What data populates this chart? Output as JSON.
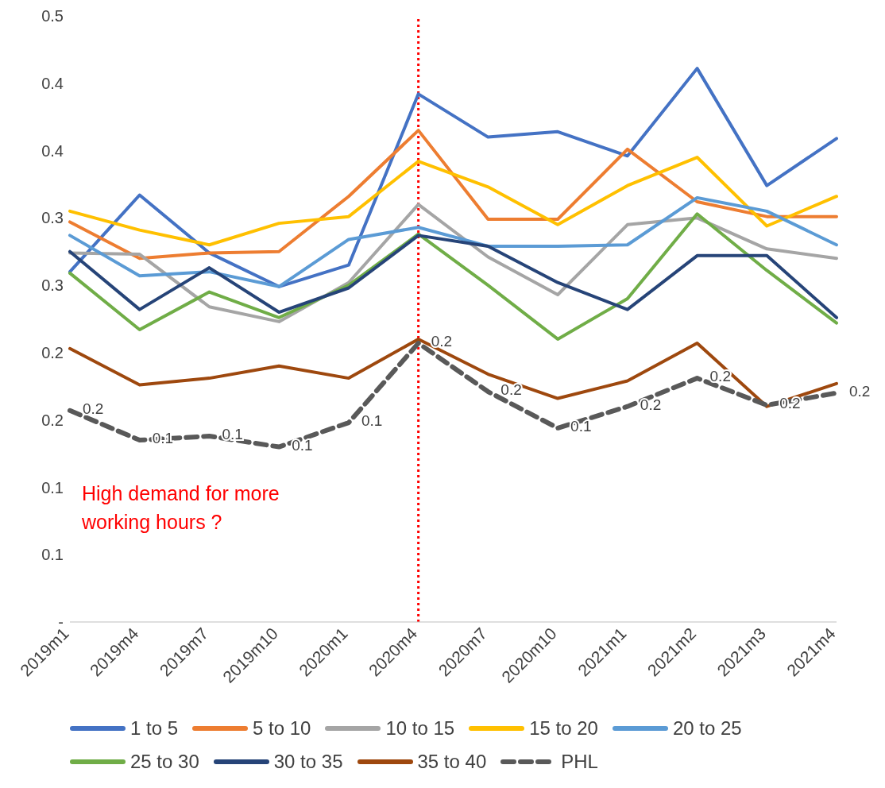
{
  "chart_data": {
    "type": "line",
    "categories": [
      "2019m1",
      "2019m4",
      "2019m7",
      "2019m10",
      "2020m1",
      "2020m4",
      "2020m7",
      "2020m10",
      "2021m1",
      "2021m2",
      "2021m3",
      "2021m4"
    ],
    "ylim": [
      0,
      0.45
    ],
    "yticks": [
      {
        "value": 0,
        "label": "-"
      },
      {
        "value": 0.05,
        "label": "0.1"
      },
      {
        "value": 0.1,
        "label": "0.1"
      },
      {
        "value": 0.15,
        "label": "0.2"
      },
      {
        "value": 0.2,
        "label": "0.2"
      },
      {
        "value": 0.25,
        "label": "0.3"
      },
      {
        "value": 0.3,
        "label": "0.3"
      },
      {
        "value": 0.35,
        "label": "0.4"
      },
      {
        "value": 0.4,
        "label": "0.4"
      },
      {
        "value": 0.45,
        "label": "0.5"
      }
    ],
    "grid": false,
    "legend": "bottom",
    "marker": "none",
    "series": [
      {
        "name": "1 to 5",
        "color": "#4472c4",
        "values": [
          0.26,
          0.317,
          0.274,
          0.249,
          0.265,
          0.392,
          0.36,
          0.364,
          0.346,
          0.411,
          0.324,
          0.359
        ]
      },
      {
        "name": "5 to 10",
        "color": "#ed7d31",
        "values": [
          0.297,
          0.27,
          0.274,
          0.275,
          0.316,
          0.365,
          0.299,
          0.299,
          0.351,
          0.312,
          0.301,
          0.301
        ]
      },
      {
        "name": "10 to 15",
        "color": "#a5a5a5",
        "values": [
          0.274,
          0.273,
          0.234,
          0.223,
          0.252,
          0.31,
          0.271,
          0.243,
          0.295,
          0.3,
          0.277,
          0.27
        ]
      },
      {
        "name": "15 to 20",
        "color": "#ffc000",
        "values": [
          0.305,
          0.291,
          0.28,
          0.296,
          0.301,
          0.342,
          0.323,
          0.295,
          0.324,
          0.345,
          0.294,
          0.316
        ]
      },
      {
        "name": "20 to 25",
        "color": "#5b9bd5",
        "values": [
          0.287,
          0.257,
          0.26,
          0.249,
          0.284,
          0.293,
          0.279,
          0.279,
          0.28,
          0.315,
          0.305,
          0.28
        ]
      },
      {
        "name": "25 to 30",
        "color": "#70ad47",
        "values": [
          0.259,
          0.217,
          0.245,
          0.226,
          0.25,
          0.288,
          0.25,
          0.21,
          0.24,
          0.303,
          0.261,
          0.222
        ]
      },
      {
        "name": "30 to 35",
        "color": "#264478",
        "values": [
          0.275,
          0.232,
          0.263,
          0.23,
          0.248,
          0.287,
          0.279,
          0.252,
          0.232,
          0.272,
          0.272,
          0.226
        ]
      },
      {
        "name": "35 to 40",
        "color": "#9e480e",
        "values": [
          0.203,
          0.176,
          0.181,
          0.19,
          0.181,
          0.21,
          0.184,
          0.166,
          0.179,
          0.207,
          0.16,
          0.177
        ]
      },
      {
        "name": "PHL",
        "color": "#595959",
        "line_style": "dashed",
        "values": [
          0.157,
          0.135,
          0.138,
          0.13,
          0.148,
          0.207,
          0.171,
          0.144,
          0.16,
          0.181,
          0.161,
          0.17
        ],
        "value_labels": [
          "0.2",
          "0.1",
          "0.1",
          "0.1",
          "0.1",
          "0.2",
          "0.2",
          "0.1",
          "0.2",
          "0.2",
          "0.2",
          "0.2"
        ]
      }
    ],
    "ref_lines": [
      {
        "axis": "x",
        "value": "2020m4",
        "color": "#ff0000",
        "line_style": "dotted"
      }
    ],
    "annotations": [
      "High demand for more working hours ?"
    ]
  }
}
